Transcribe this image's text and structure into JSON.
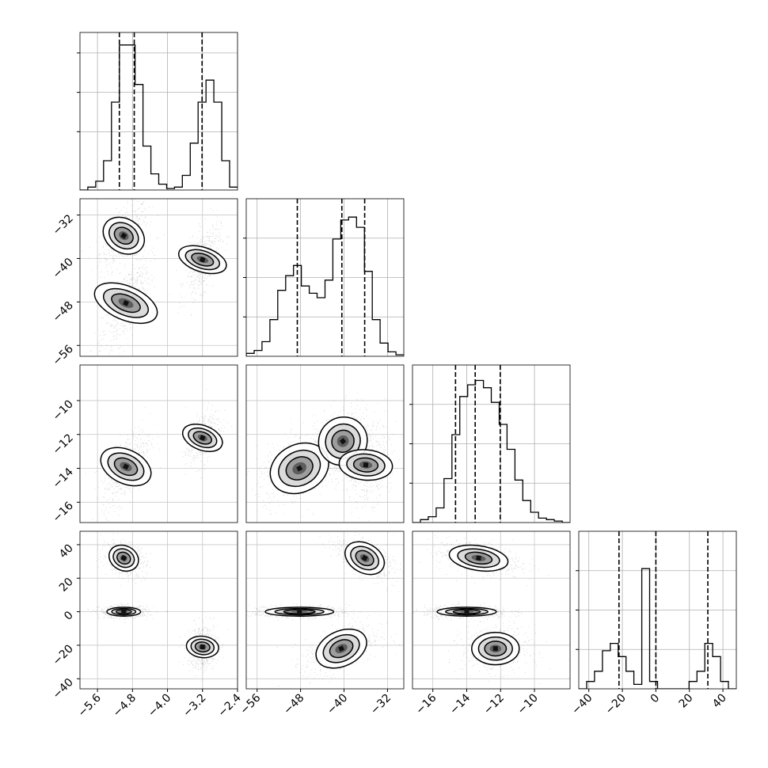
{
  "chart_data": {
    "type": "corner",
    "grid": true,
    "parameters": [
      {
        "range": [
          -6.0,
          -2.4
        ],
        "ticks": [
          -5.6,
          -4.8,
          -4.0,
          -3.2,
          -2.4
        ],
        "tick_labels": [
          "−5.6",
          "−4.8",
          "−4.0",
          "−3.2",
          "−2.4"
        ],
        "quantiles": [
          -5.1,
          -4.76,
          -3.21
        ],
        "histogram": {
          "edges_start": -6.0,
          "bin_width": 0.18,
          "counts": [
            0.0,
            0.02,
            0.06,
            0.2,
            0.6,
            0.99,
            0.99,
            0.72,
            0.3,
            0.11,
            0.04,
            0.01,
            0.02,
            0.1,
            0.32,
            0.6,
            0.75,
            0.6,
            0.2,
            0.02
          ]
        }
      },
      {
        "range": [
          -58.0,
          -29.0
        ],
        "ticks": [
          -56,
          -48,
          -40,
          -32
        ],
        "tick_labels": [
          "−56",
          "−48",
          "−40",
          "−32"
        ],
        "quantiles": [
          -48.6,
          -40.4,
          -36.2
        ],
        "histogram": {
          "edges_start": -58.0,
          "bin_width": 1.45,
          "counts": [
            0.02,
            0.04,
            0.1,
            0.25,
            0.45,
            0.55,
            0.62,
            0.48,
            0.43,
            0.4,
            0.52,
            0.8,
            0.93,
            0.95,
            0.88,
            0.58,
            0.25,
            0.09,
            0.03,
            0.01
          ]
        }
      },
      {
        "range": [
          -17.2,
          -7.9
        ],
        "ticks": [
          -16,
          -14,
          -12,
          -10
        ],
        "tick_labels": [
          "−16",
          "−14",
          "−12",
          "−10"
        ],
        "quantiles": [
          -14.66,
          -13.5,
          -12.02
        ],
        "histogram": {
          "edges_start": -17.2,
          "bin_width": 0.465,
          "counts": [
            0.0,
            0.02,
            0.04,
            0.1,
            0.3,
            0.6,
            0.86,
            0.94,
            0.97,
            0.92,
            0.82,
            0.67,
            0.5,
            0.29,
            0.15,
            0.07,
            0.03,
            0.02,
            0.01,
            0.0
          ]
        }
      },
      {
        "range": [
          -46.0,
          48.0
        ],
        "ticks": [
          -40,
          -20,
          0,
          20,
          40
        ],
        "tick_labels": [
          "−40",
          "−20",
          "0",
          "20",
          "40"
        ],
        "quantiles": [
          -22.0,
          0.0,
          31.0
        ],
        "histogram": {
          "edges_start": -46.0,
          "bin_width": 4.7,
          "counts": [
            0.0,
            0.05,
            0.12,
            0.26,
            0.31,
            0.22,
            0.12,
            0.03,
            0.82,
            0.05,
            0.0,
            0.0,
            0.0,
            0.0,
            0.05,
            0.12,
            0.31,
            0.22,
            0.05,
            0.0
          ]
        }
      }
    ],
    "pairs": [
      {
        "row": 1,
        "col": 0,
        "clusters": [
          {
            "center": [
              -5.0,
              -35.8
            ],
            "sigma": [
              0.22,
              2.3
            ],
            "rho": 0.55,
            "weight": 1.0
          },
          {
            "center": [
              -4.95,
              -48.2
            ],
            "sigma": [
              0.22,
              3.5
            ],
            "rho": 0.75,
            "weight": 1.0
          },
          {
            "center": [
              -3.2,
              -40.2
            ],
            "sigma": [
              0.16,
              2.6
            ],
            "rho": 0.55,
            "weight": 0.9
          }
        ]
      },
      {
        "row": 2,
        "col": 0,
        "clusters": [
          {
            "center": [
              -4.95,
              -13.9
            ],
            "sigma": [
              0.22,
              0.9
            ],
            "rho": 0.6,
            "weight": 1.0
          },
          {
            "center": [
              -3.2,
              -12.2
            ],
            "sigma": [
              0.16,
              0.7
            ],
            "rho": 0.5,
            "weight": 0.7
          }
        ]
      },
      {
        "row": 2,
        "col": 1,
        "clusters": [
          {
            "center": [
              -48.2,
              -14.0
            ],
            "sigma": [
              3.2,
              0.8
            ],
            "rho": 0.35,
            "weight": 1.0
          },
          {
            "center": [
              -40.2,
              -12.4
            ],
            "sigma": [
              2.6,
              0.8
            ],
            "rho": 0.2,
            "weight": 1.0
          },
          {
            "center": [
              -36.0,
              -13.8
            ],
            "sigma": [
              1.6,
              0.9
            ],
            "rho": 0.1,
            "weight": 0.9
          }
        ]
      },
      {
        "row": 3,
        "col": 0,
        "clusters": [
          {
            "center": [
              -5.0,
              32.0
            ],
            "sigma": [
              0.2,
              4.2
            ],
            "rho": -0.3,
            "weight": 1.0
          },
          {
            "center": [
              -5.0,
              0.0
            ],
            "sigma": [
              0.22,
              1.5
            ],
            "rho": 0.0,
            "weight": 1.1
          },
          {
            "center": [
              -3.2,
              -21.0
            ],
            "sigma": [
              0.14,
              5.5
            ],
            "rho": 0.1,
            "weight": 1.0
          }
        ]
      },
      {
        "row": 3,
        "col": 1,
        "clusters": [
          {
            "center": [
              -36.2,
              32.0
            ],
            "sigma": [
              2.2,
              5.0
            ],
            "rho": -0.6,
            "weight": 1.0
          },
          {
            "center": [
              -48.2,
              0.0
            ],
            "sigma": [
              3.6,
              1.5
            ],
            "rho": 0.0,
            "weight": 1.1
          },
          {
            "center": [
              -40.5,
              -22.0
            ],
            "sigma": [
              2.8,
              6.0
            ],
            "rho": 0.5,
            "weight": 1.0
          }
        ]
      },
      {
        "row": 3,
        "col": 2,
        "clusters": [
          {
            "center": [
              -13.3,
              32.0
            ],
            "sigma": [
              1.0,
              4.2
            ],
            "rho": -0.3,
            "weight": 1.0
          },
          {
            "center": [
              -14.0,
              0.0
            ],
            "sigma": [
              1.0,
              1.5
            ],
            "rho": 0.0,
            "weight": 1.1
          },
          {
            "center": [
              -12.3,
              -22.0
            ],
            "sigma": [
              0.8,
              5.5
            ],
            "rho": 0.0,
            "weight": 1.0
          }
        ]
      }
    ]
  }
}
